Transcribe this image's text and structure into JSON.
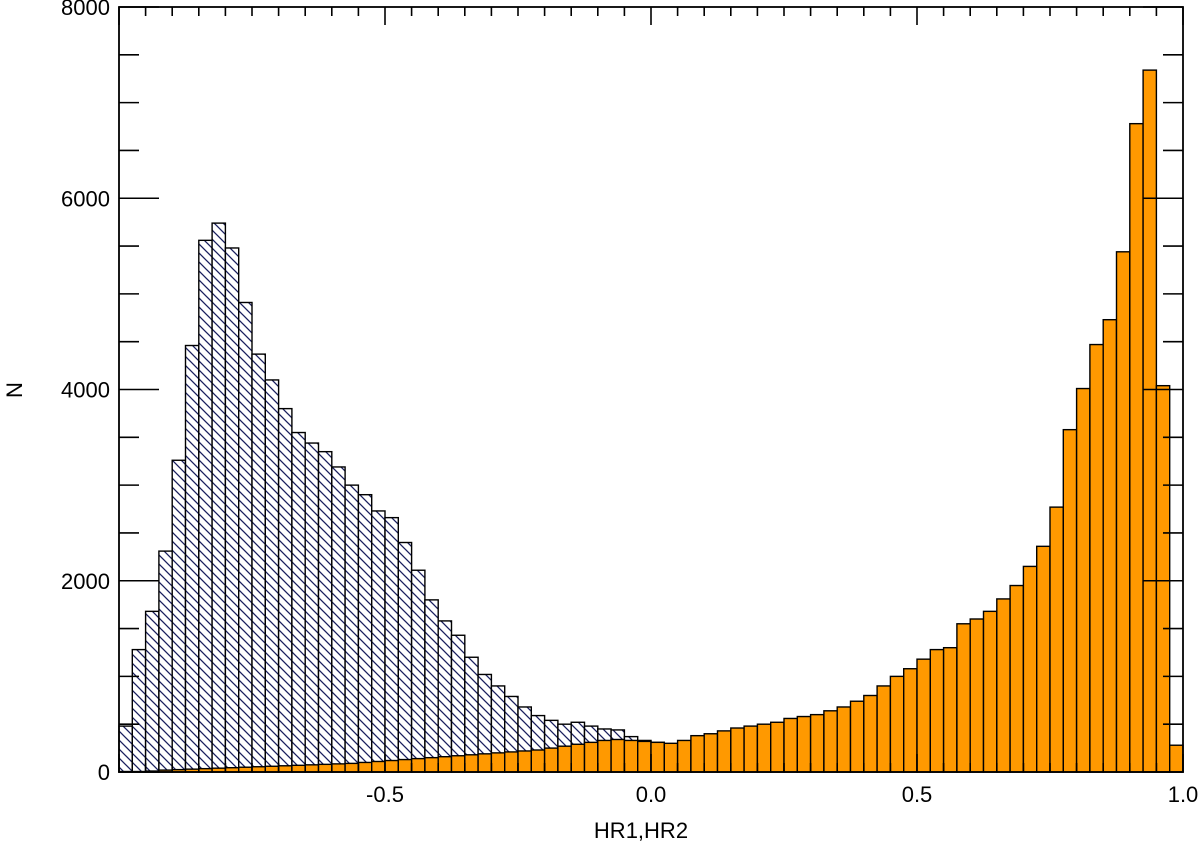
{
  "chart_data": {
    "type": "bar",
    "xlabel": "HR1,HR2",
    "ylabel": "N",
    "xlim": [
      -1.0,
      1.0
    ],
    "ylim": [
      0,
      8000
    ],
    "bin_width": 0.025,
    "x_ticks": [
      -0.5,
      0.0,
      0.5,
      1.0
    ],
    "x_tick_labels": [
      "-0.5",
      "0.0",
      "0.5",
      "1.0"
    ],
    "y_ticks": [
      0,
      2000,
      4000,
      6000,
      8000
    ],
    "y_tick_labels": [
      "0",
      "2000",
      "4000",
      "6000",
      "8000"
    ],
    "grid": false,
    "colors": {
      "series1": "#1a1f5e",
      "series2": "#ff9900"
    },
    "series": [
      {
        "fill": "hatch",
        "color": "#1a1f5e",
        "bin_left": [
          -1.0,
          -0.975,
          -0.95,
          -0.925,
          -0.9,
          -0.875,
          -0.85,
          -0.825,
          -0.8,
          -0.775,
          -0.75,
          -0.725,
          -0.7,
          -0.675,
          -0.65,
          -0.625,
          -0.6,
          -0.575,
          -0.55,
          -0.525,
          -0.5,
          -0.475,
          -0.45,
          -0.425,
          -0.4,
          -0.375,
          -0.35,
          -0.325,
          -0.3,
          -0.275,
          -0.25,
          -0.225,
          -0.2,
          -0.175,
          -0.15,
          -0.125,
          -0.1,
          -0.075,
          -0.05,
          -0.025,
          0.0,
          0.025,
          0.05,
          0.075,
          0.1,
          0.125,
          0.15,
          0.175,
          0.2,
          0.225,
          0.25,
          0.275,
          0.3,
          0.325,
          0.35,
          0.375,
          0.4,
          0.425,
          0.45,
          0.475,
          0.5,
          0.525,
          0.55,
          0.575,
          0.6,
          0.625,
          0.65,
          0.675,
          0.7,
          0.725,
          0.75,
          0.775,
          0.8,
          0.825,
          0.85,
          0.875,
          0.9,
          0.925,
          0.95,
          0.975
        ],
        "values": [
          480,
          1280,
          1680,
          2310,
          3260,
          4460,
          5560,
          5740,
          5480,
          4910,
          4370,
          4100,
          3800,
          3550,
          3440,
          3350,
          3190,
          3000,
          2900,
          2730,
          2660,
          2400,
          2110,
          1800,
          1580,
          1430,
          1200,
          1020,
          900,
          790,
          680,
          590,
          540,
          500,
          520,
          480,
          450,
          440,
          370,
          330,
          310,
          270,
          250,
          240,
          230,
          220,
          205,
          205,
          195,
          185,
          180,
          175,
          170,
          165,
          160,
          150,
          150,
          145,
          140,
          130,
          120,
          110,
          110,
          100,
          100,
          100,
          90,
          90,
          80,
          75,
          75,
          70,
          65,
          60,
          55,
          55,
          40,
          30,
          20,
          10
        ]
      },
      {
        "fill": "solid",
        "color": "#ff9900",
        "bin_left": [
          -1.0,
          -0.975,
          -0.95,
          -0.925,
          -0.9,
          -0.875,
          -0.85,
          -0.825,
          -0.8,
          -0.775,
          -0.75,
          -0.725,
          -0.7,
          -0.675,
          -0.65,
          -0.625,
          -0.6,
          -0.575,
          -0.55,
          -0.525,
          -0.5,
          -0.475,
          -0.45,
          -0.425,
          -0.4,
          -0.375,
          -0.35,
          -0.325,
          -0.3,
          -0.275,
          -0.25,
          -0.225,
          -0.2,
          -0.175,
          -0.15,
          -0.125,
          -0.1,
          -0.075,
          -0.05,
          -0.025,
          0.0,
          0.025,
          0.05,
          0.075,
          0.1,
          0.125,
          0.15,
          0.175,
          0.2,
          0.225,
          0.25,
          0.275,
          0.3,
          0.325,
          0.35,
          0.375,
          0.4,
          0.425,
          0.45,
          0.475,
          0.5,
          0.525,
          0.55,
          0.575,
          0.6,
          0.625,
          0.65,
          0.675,
          0.7,
          0.725,
          0.75,
          0.775,
          0.8,
          0.825,
          0.85,
          0.875,
          0.9,
          0.925,
          0.95,
          0.975,
          1.0
        ],
        "values": [
          5,
          5,
          10,
          20,
          25,
          30,
          35,
          40,
          45,
          50,
          55,
          60,
          65,
          70,
          75,
          80,
          85,
          90,
          100,
          110,
          120,
          130,
          140,
          150,
          160,
          170,
          180,
          190,
          200,
          210,
          220,
          230,
          250,
          270,
          290,
          310,
          330,
          340,
          330,
          320,
          310,
          300,
          330,
          380,
          400,
          430,
          460,
          480,
          500,
          520,
          560,
          580,
          600,
          640,
          680,
          740,
          800,
          900,
          1000,
          1080,
          1180,
          1280,
          1300,
          1550,
          1600,
          1680,
          1810,
          1950,
          2150,
          2360,
          2770,
          3580,
          4010,
          4470,
          4730,
          5440,
          6780,
          7340,
          4040,
          280,
          0
        ]
      }
    ]
  }
}
